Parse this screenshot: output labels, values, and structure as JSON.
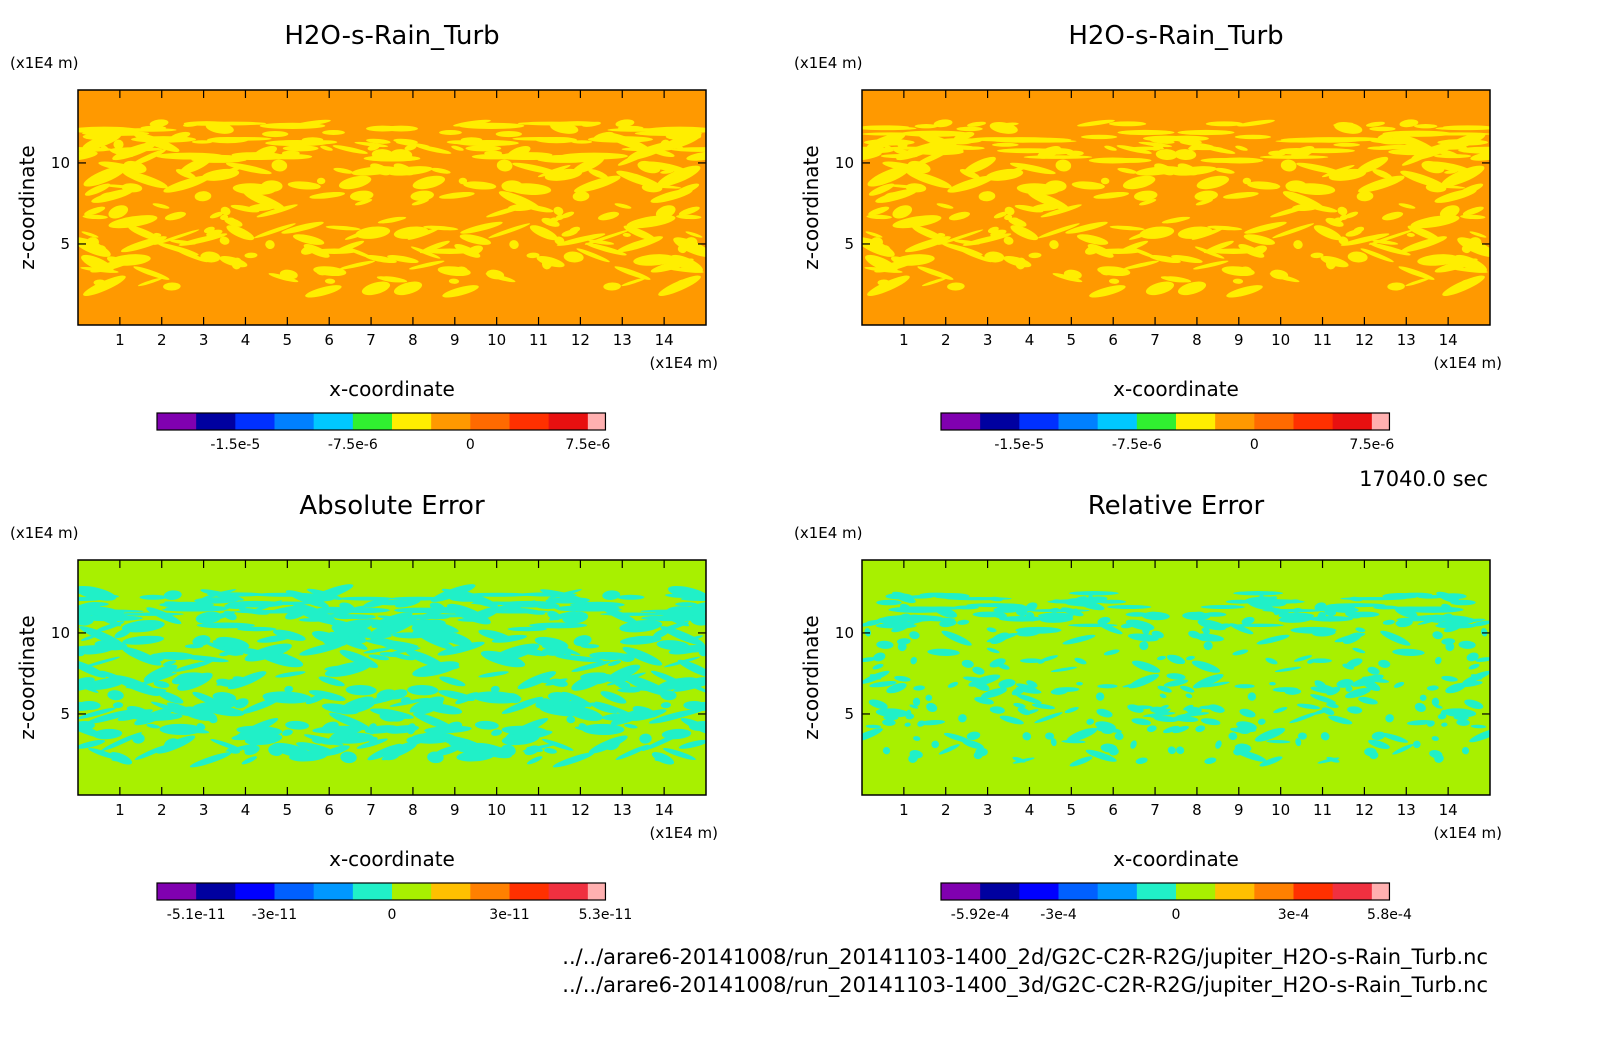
{
  "time_label": "17040.0 sec",
  "file_paths": [
    "../../arare6-20141008/run_20141103-1400_2d/G2C-C2R-R2G/jupiter_H2O-s-Rain_Turb.nc",
    "../../arare6-20141008/run_20141103-1400_3d/G2C-C2R-R2G/jupiter_H2O-s-Rain_Turb.nc"
  ],
  "chart_data": [
    {
      "type": "heatmap",
      "title": "H2O-s-Rain_Turb",
      "xlabel": "x-coordinate",
      "ylabel": "z-coordinate",
      "x_unit": "(x1E4 m)",
      "y_unit": "(x1E4 m)",
      "xlim": [
        0,
        15
      ],
      "ylim": [
        0,
        14.5
      ],
      "xticks": [
        "1",
        "2",
        "3",
        "4",
        "5",
        "6",
        "7",
        "8",
        "9",
        "10",
        "11",
        "12",
        "13",
        "14"
      ],
      "yticks": [
        "5",
        "10"
      ],
      "background_color": "#ff9900",
      "pattern_color": "#ffee00",
      "pattern": "dense",
      "colorbar": {
        "colors": [
          "#8000b0",
          "#0000a0",
          "#0030ff",
          "#0080ff",
          "#00c8ff",
          "#30f030",
          "#ffee00",
          "#ff9900",
          "#ff6a00",
          "#ff3000",
          "#e81010",
          "#ffb0b0"
        ],
        "labels": [
          "-1.5e-5",
          "-7.5e-6",
          "0",
          "7.5e-6"
        ],
        "label_slots": [
          1,
          4,
          7,
          10
        ]
      }
    },
    {
      "type": "heatmap",
      "title": "H2O-s-Rain_Turb",
      "xlabel": "x-coordinate",
      "ylabel": "z-coordinate",
      "x_unit": "(x1E4 m)",
      "y_unit": "(x1E4 m)",
      "xlim": [
        0,
        15
      ],
      "ylim": [
        0,
        14.5
      ],
      "xticks": [
        "1",
        "2",
        "3",
        "4",
        "5",
        "6",
        "7",
        "8",
        "9",
        "10",
        "11",
        "12",
        "13",
        "14"
      ],
      "yticks": [
        "5",
        "10"
      ],
      "background_color": "#ff9900",
      "pattern_color": "#ffee00",
      "pattern": "dense",
      "colorbar": {
        "colors": [
          "#8000b0",
          "#0000a0",
          "#0030ff",
          "#0080ff",
          "#00c8ff",
          "#30f030",
          "#ffee00",
          "#ff9900",
          "#ff6a00",
          "#ff3000",
          "#e81010",
          "#ffb0b0"
        ],
        "labels": [
          "-1.5e-5",
          "-7.5e-6",
          "0",
          "7.5e-6"
        ],
        "label_slots": [
          1,
          4,
          7,
          10
        ]
      }
    },
    {
      "type": "heatmap",
      "title": "Absolute Error",
      "xlabel": "x-coordinate",
      "ylabel": "z-coordinate",
      "x_unit": "(x1E4 m)",
      "y_unit": "(x1E4 m)",
      "xlim": [
        0,
        15
      ],
      "ylim": [
        0,
        14.5
      ],
      "xticks": [
        "1",
        "2",
        "3",
        "4",
        "5",
        "6",
        "7",
        "8",
        "9",
        "10",
        "11",
        "12",
        "13",
        "14"
      ],
      "yticks": [
        "5",
        "10"
      ],
      "background_color": "#a8f000",
      "pattern_color": "#20f0c8",
      "pattern": "dense",
      "colorbar": {
        "colors": [
          "#8000b0",
          "#0000a0",
          "#0000ff",
          "#0060ff",
          "#0098ff",
          "#20f0c8",
          "#a8f000",
          "#ffc000",
          "#ff8000",
          "#ff3000",
          "#f03040",
          "#ffb0b0"
        ],
        "labels": [
          "-5.1e-11",
          "-3e-11",
          "0",
          "3e-11",
          "5.3e-11"
        ],
        "label_slots": [
          0,
          2,
          5,
          8,
          11
        ]
      }
    },
    {
      "type": "heatmap",
      "title": "Relative Error",
      "xlabel": "x-coordinate",
      "ylabel": "z-coordinate",
      "x_unit": "(x1E4 m)",
      "y_unit": "(x1E4 m)",
      "xlim": [
        0,
        15
      ],
      "ylim": [
        0,
        14.5
      ],
      "xticks": [
        "1",
        "2",
        "3",
        "4",
        "5",
        "6",
        "7",
        "8",
        "9",
        "10",
        "11",
        "12",
        "13",
        "14"
      ],
      "yticks": [
        "5",
        "10"
      ],
      "background_color": "#a8f000",
      "pattern_color": "#20f0c8",
      "pattern": "sparse",
      "colorbar": {
        "colors": [
          "#8000b0",
          "#0000a0",
          "#0000ff",
          "#0060ff",
          "#0098ff",
          "#20f0c8",
          "#a8f000",
          "#ffc000",
          "#ff8000",
          "#ff3000",
          "#f03040",
          "#ffb0b0"
        ],
        "labels": [
          "-5.92e-4",
          "-3e-4",
          "0",
          "3e-4",
          "5.8e-4"
        ],
        "label_slots": [
          0,
          2,
          5,
          8,
          11
        ]
      }
    }
  ]
}
